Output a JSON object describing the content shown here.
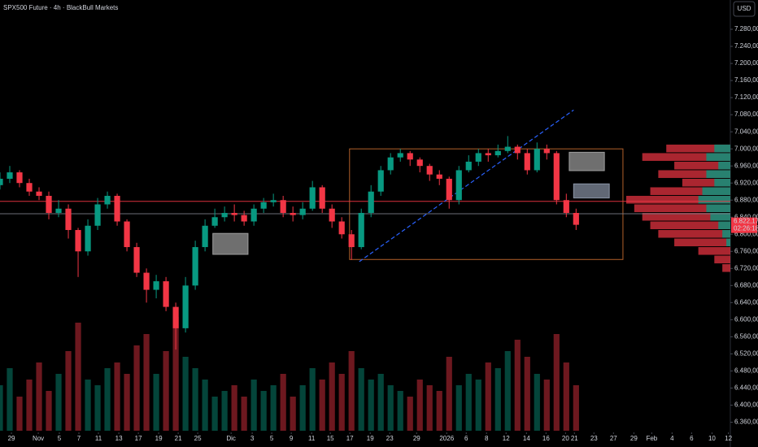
{
  "chart_data": {
    "type": "candlestick",
    "title": "SPX500 Future · 4h · BlackBull Markets",
    "currency": "USD",
    "up_color": "#089981",
    "down_color": "#f23645",
    "xlim": [
      0,
      74.8
    ],
    "ylim": [
      6340,
      7320
    ],
    "x": [
      0,
      1,
      2,
      3,
      4,
      5,
      6,
      7,
      8,
      9,
      10,
      11,
      12,
      13,
      14,
      15,
      16,
      17,
      18,
      19,
      20,
      21,
      22,
      23,
      24,
      25,
      26,
      27,
      28,
      29,
      30,
      31,
      32,
      33,
      34,
      35,
      36,
      37,
      38,
      39,
      40,
      41,
      42,
      43,
      44,
      45,
      46,
      47,
      48,
      49,
      50,
      51,
      52,
      53,
      54,
      55,
      56,
      57,
      58,
      59
    ],
    "open": [
      6915,
      6930,
      6945,
      6920,
      6900,
      6890,
      6850,
      6860,
      6810,
      6760,
      6820,
      6870,
      6890,
      6830,
      6770,
      6710,
      6670,
      6690,
      6630,
      6580,
      6680,
      6770,
      6820,
      6840,
      6850,
      6845,
      6830,
      6860,
      6875,
      6880,
      6850,
      6845,
      6860,
      6910,
      6860,
      6830,
      6800,
      6770,
      6850,
      6900,
      6950,
      6980,
      6990,
      6975,
      6960,
      6940,
      6930,
      6880,
      6950,
      6970,
      6990,
      6985,
      6995,
      7005,
      6990,
      6950,
      7000,
      6990,
      6880,
      6850
    ],
    "high": [
      6945,
      6960,
      6950,
      6930,
      6910,
      6900,
      6880,
      6870,
      6815,
      6835,
      6885,
      6900,
      6895,
      6835,
      6780,
      6720,
      6705,
      6700,
      6640,
      6700,
      6785,
      6835,
      6860,
      6865,
      6870,
      6855,
      6870,
      6885,
      6895,
      6890,
      6865,
      6875,
      6925,
      6915,
      6870,
      6840,
      6810,
      6860,
      6915,
      6960,
      6990,
      7000,
      6995,
      6980,
      6965,
      6950,
      6935,
      6960,
      6985,
      7000,
      7000,
      7010,
      7030,
      7010,
      7000,
      7015,
      7010,
      6995,
      6895,
      6860
    ],
    "low": [
      6905,
      6920,
      6910,
      6890,
      6880,
      6835,
      6840,
      6790,
      6700,
      6750,
      6810,
      6860,
      6820,
      6760,
      6700,
      6640,
      6650,
      6620,
      6530,
      6570,
      6670,
      6760,
      6815,
      6830,
      6830,
      6820,
      6820,
      6850,
      6865,
      6840,
      6830,
      6835,
      6855,
      6850,
      6815,
      6790,
      6740,
      6765,
      6840,
      6890,
      6940,
      6970,
      6960,
      6945,
      6925,
      6915,
      6860,
      6870,
      6945,
      6960,
      6970,
      6980,
      6990,
      6975,
      6940,
      6945,
      6975,
      6870,
      6840,
      6810
    ],
    "close": [
      6930,
      6945,
      6920,
      6900,
      6890,
      6850,
      6860,
      6810,
      6760,
      6820,
      6870,
      6890,
      6830,
      6770,
      6710,
      6670,
      6690,
      6630,
      6580,
      6680,
      6770,
      6820,
      6840,
      6850,
      6845,
      6830,
      6860,
      6875,
      6880,
      6850,
      6845,
      6860,
      6910,
      6860,
      6830,
      6800,
      6770,
      6850,
      6900,
      6950,
      6980,
      6990,
      6975,
      6960,
      6940,
      6930,
      6880,
      6950,
      6970,
      6990,
      6985,
      6995,
      7005,
      6990,
      6950,
      7000,
      6990,
      6880,
      6850,
      6822.17
    ],
    "volume": [
      40,
      55,
      30,
      45,
      60,
      35,
      50,
      70,
      95,
      45,
      40,
      55,
      60,
      50,
      75,
      85,
      50,
      70,
      100,
      65,
      55,
      45,
      30,
      35,
      40,
      30,
      45,
      35,
      40,
      50,
      30,
      40,
      55,
      45,
      60,
      50,
      70,
      55,
      45,
      50,
      40,
      35,
      30,
      45,
      40,
      35,
      65,
      40,
      50,
      45,
      60,
      55,
      70,
      80,
      65,
      50,
      45,
      85,
      60,
      40
    ],
    "yticks": [
      {
        "value": 7280,
        "label": "7.280,00"
      },
      {
        "value": 7240,
        "label": "7.240,00"
      },
      {
        "value": 7200,
        "label": "7.200,00"
      },
      {
        "value": 7160,
        "label": "7.160,00"
      },
      {
        "value": 7120,
        "label": "7.120,00"
      },
      {
        "value": 7080,
        "label": "7.080,00"
      },
      {
        "value": 7040,
        "label": "7.040,00"
      },
      {
        "value": 7000,
        "label": "7.000,00"
      },
      {
        "value": 6960,
        "label": "6.960,00"
      },
      {
        "value": 6920,
        "label": "6.920,00"
      },
      {
        "value": 6880,
        "label": "6.880,00"
      },
      {
        "value": 6840,
        "label": "6.840,00"
      },
      {
        "value": 6800,
        "label": "6.800,00"
      },
      {
        "value": 6760,
        "label": "6.760,00"
      },
      {
        "value": 6720,
        "label": "6.720,00"
      },
      {
        "value": 6680,
        "label": "6.680,00"
      },
      {
        "value": 6640,
        "label": "6.640,00"
      },
      {
        "value": 6600,
        "label": "6.600,00"
      },
      {
        "value": 6560,
        "label": "6.560,00"
      },
      {
        "value": 6520,
        "label": "6.520,00"
      },
      {
        "value": 6480,
        "label": "6.480,00"
      },
      {
        "value": 6440,
        "label": "6.440,00"
      },
      {
        "value": 6400,
        "label": "6.400,00"
      },
      {
        "value": 6360,
        "label": "6.360,00"
      }
    ],
    "xticks": [
      {
        "value": 1.17,
        "label": "29"
      },
      {
        "value": 3.92,
        "label": "Nov"
      },
      {
        "value": 6.08,
        "label": "5"
      },
      {
        "value": 8.08,
        "label": "7"
      },
      {
        "value": 10.08,
        "label": "11"
      },
      {
        "value": 12.17,
        "label": "13"
      },
      {
        "value": 14.17,
        "label": "17"
      },
      {
        "value": 16.25,
        "label": "19"
      },
      {
        "value": 18.25,
        "label": "21"
      },
      {
        "value": 20.25,
        "label": "25"
      },
      {
        "value": 23.67,
        "label": "Dic"
      },
      {
        "value": 25.83,
        "label": "3"
      },
      {
        "value": 27.83,
        "label": "5"
      },
      {
        "value": 29.83,
        "label": "9"
      },
      {
        "value": 31.92,
        "label": "11"
      },
      {
        "value": 33.83,
        "label": "15"
      },
      {
        "value": 35.83,
        "label": "17"
      },
      {
        "value": 37.92,
        "label": "19"
      },
      {
        "value": 39.92,
        "label": "23"
      },
      {
        "value": 42.67,
        "label": "29"
      },
      {
        "value": 45.75,
        "label": "2026"
      },
      {
        "value": 47.75,
        "label": "6"
      },
      {
        "value": 49.83,
        "label": "8"
      },
      {
        "value": 51.83,
        "label": "12"
      },
      {
        "value": 53.92,
        "label": "14"
      },
      {
        "value": 55.92,
        "label": "16"
      },
      {
        "value": 57.92,
        "label": "20"
      },
      {
        "value": 58.83,
        "label": "21"
      },
      {
        "value": 60.83,
        "label": "23"
      },
      {
        "value": 62.83,
        "label": "27"
      },
      {
        "value": 64.92,
        "label": "29"
      },
      {
        "value": 66.75,
        "label": "Feb"
      },
      {
        "value": 68.83,
        "label": "4"
      },
      {
        "value": 70.83,
        "label": "6"
      },
      {
        "value": 72.92,
        "label": "10"
      },
      {
        "value": 74.6,
        "label": "12"
      }
    ],
    "last_price": {
      "value": 6822.17,
      "label": "6.822,17"
    },
    "countdown": "02:26:18",
    "hlines": [
      {
        "price": 6877,
        "color": "#f23645"
      },
      {
        "price": 6848,
        "color": "#787b86"
      }
    ],
    "boxes": [
      {
        "x": [
          35.8,
          63.8
        ],
        "y": [
          6741,
          7000
        ],
        "color": "#b2602a",
        "fill": "none"
      },
      {
        "x": [
          21.8,
          25.4
        ],
        "y": [
          6753,
          6802
        ],
        "color": "#9e9e9e",
        "fill": "#9e9e9e"
      },
      {
        "x": [
          58.3,
          61.9
        ],
        "y": [
          6949,
          6992
        ],
        "color": "#9e9e9e",
        "fill": "#9e9e9e"
      },
      {
        "x": [
          58.75,
          62.4
        ],
        "y": [
          6885,
          6918
        ],
        "color": "#8a94a6",
        "fill": "#8a94a6"
      }
    ],
    "trendline": {
      "x": [
        36.8,
        58.75
      ],
      "y": [
        6736,
        7091
      ],
      "color": "#2962ff"
    },
    "volume_profile": {
      "prices": [
        7000,
        6980,
        6960,
        6940,
        6920,
        6900,
        6880,
        6860,
        6840,
        6820,
        6800,
        6780,
        6760,
        6740,
        6720
      ],
      "total": [
        80,
        110,
        70,
        90,
        60,
        100,
        130,
        120,
        110,
        100,
        90,
        70,
        40,
        20,
        10
      ],
      "buy": [
        20,
        30,
        15,
        30,
        20,
        35,
        40,
        30,
        25,
        15,
        10,
        5,
        0,
        0,
        0
      ]
    }
  }
}
